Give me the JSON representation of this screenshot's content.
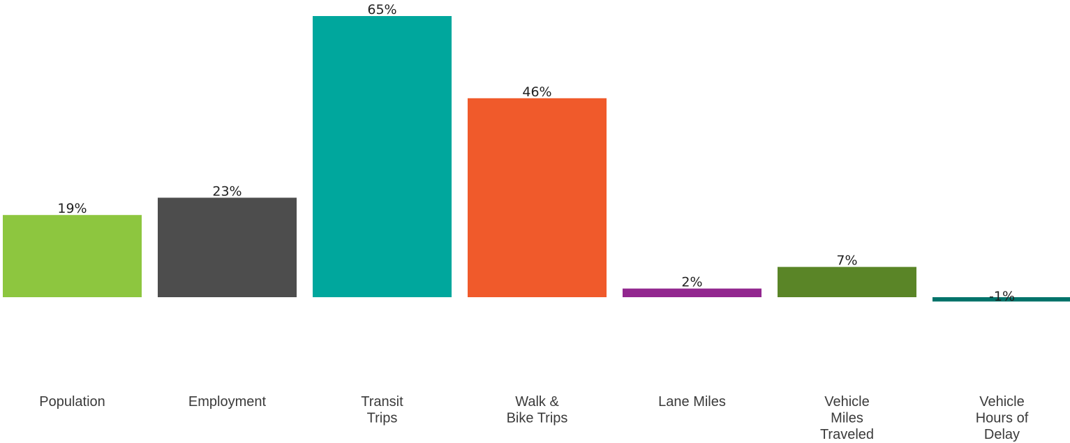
{
  "chart_data": {
    "type": "bar",
    "title": "",
    "xlabel": "",
    "ylabel": "",
    "ylim": [
      -1,
      65
    ],
    "grid": false,
    "legend": "none",
    "categories": [
      [
        "Population"
      ],
      [
        "Employment"
      ],
      [
        "Transit",
        "Trips"
      ],
      [
        "Walk &",
        "Bike Trips"
      ],
      [
        "Lane Miles"
      ],
      [
        "Vehicle",
        "Miles",
        "Traveled"
      ],
      [
        "Vehicle",
        "Hours of",
        "Delay"
      ]
    ],
    "values": [
      19,
      23,
      65,
      46,
      2,
      7,
      -1
    ],
    "value_labels": [
      "19%",
      "23%",
      "65%",
      "46%",
      "2%",
      "7%",
      "-1%"
    ],
    "colors": [
      "#8dc63f",
      "#4d4d4d",
      "#00a79d",
      "#f05a2b",
      "#92278f",
      "#5a8527",
      "#00736a"
    ]
  }
}
